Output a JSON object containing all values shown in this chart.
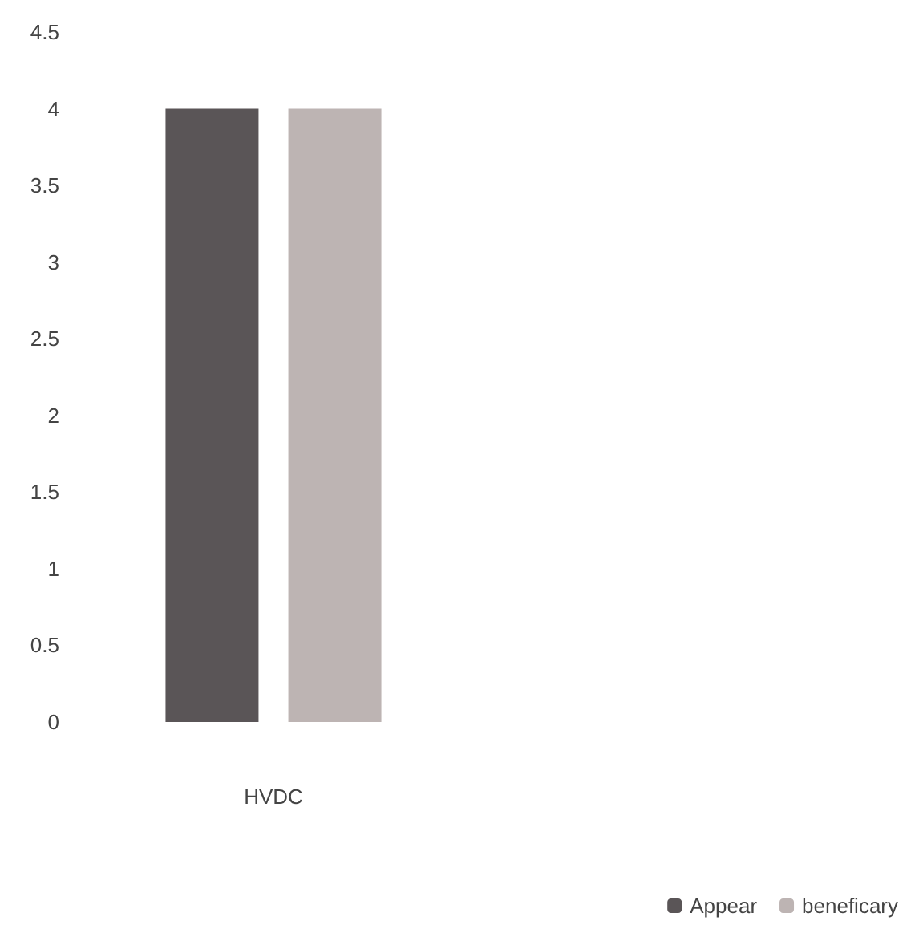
{
  "chart_data": {
    "type": "bar",
    "categories": [
      "HVDC"
    ],
    "series": [
      {
        "name": "Appear",
        "color": "#5a5557",
        "values": [
          4
        ]
      },
      {
        "name": "beneficary",
        "color": "#bdb4b3",
        "values": [
          4
        ]
      }
    ],
    "ylim": [
      0,
      4.5
    ],
    "yticks": [
      0,
      0.5,
      1,
      1.5,
      2,
      2.5,
      3,
      3.5,
      4,
      4.5
    ],
    "grid": false,
    "legend": "bottom right"
  }
}
